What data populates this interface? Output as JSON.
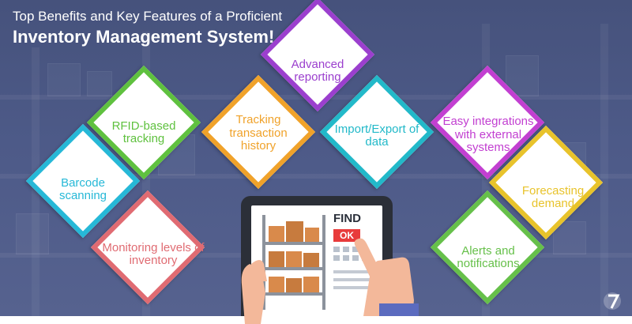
{
  "title": {
    "line1": "Top Benefits and Key Features of a Proficient",
    "line2": "Inventory Management System!"
  },
  "features": [
    {
      "label": "Advanced reporting",
      "color": "#9b3fce"
    },
    {
      "label": "RFID-based tracking",
      "color": "#5fc13f"
    },
    {
      "label": "Tracking transaction history",
      "color": "#f0a22a"
    },
    {
      "label": "Import/Export of data",
      "color": "#22b9c9"
    },
    {
      "label": "Easy integrations with external systems",
      "color": "#c23fd1"
    },
    {
      "label": "Barcode scanning",
      "color": "#26b8d7"
    },
    {
      "label": "Forecasting demand",
      "color": "#e8c32b"
    },
    {
      "label": "Monitoring levels of inventory",
      "color": "#e06b72"
    },
    {
      "label": "Alerts and notifications",
      "color": "#66c04a"
    }
  ],
  "tablet": {
    "find_label": "FIND",
    "ok_label": "OK"
  },
  "icons": [
    "tablet-icon",
    "hand-icon",
    "shelf-boxes-icon",
    "logo-mark-icon"
  ]
}
